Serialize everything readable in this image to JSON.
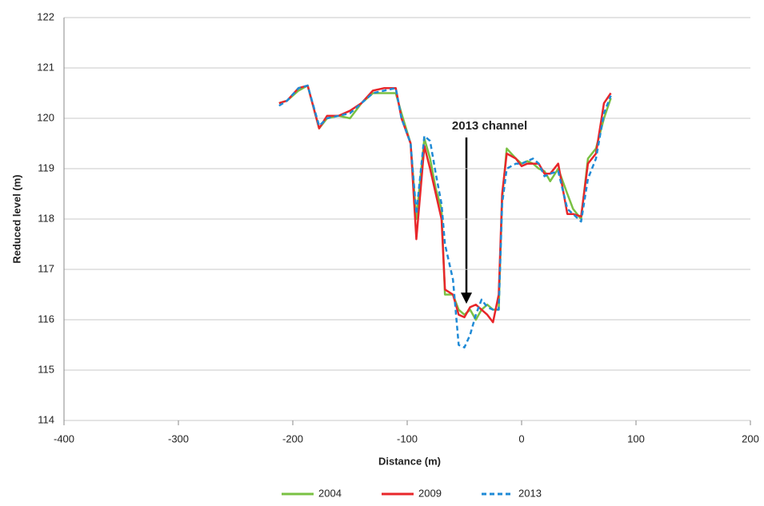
{
  "chart_data": {
    "type": "line",
    "annotation": "2013 channel",
    "xlabel": "Distance (m)",
    "ylabel": "Reduced level (m)",
    "xlim": [
      -400,
      200
    ],
    "xticks": [
      -400,
      -300,
      -200,
      -100,
      0,
      100,
      200
    ],
    "ylim": [
      114,
      122
    ],
    "yticks": [
      114,
      115,
      116,
      117,
      118,
      119,
      120,
      121,
      122
    ],
    "grid": true,
    "legend": "bottom",
    "x": [
      -212,
      -205,
      -195,
      -187,
      -177,
      -170,
      -160,
      -150,
      -140,
      -130,
      -120,
      -110,
      -105,
      -97,
      -92,
      -85,
      -80,
      -75,
      -70,
      -67,
      -60,
      -55,
      -50,
      -45,
      -40,
      -35,
      -30,
      -25,
      -20,
      -17,
      -13,
      -5,
      0,
      5,
      10,
      15,
      20,
      25,
      32,
      40,
      45,
      52,
      58,
      65,
      72,
      78
    ],
    "series": [
      {
        "name": "2004",
        "color": "#7ac143",
        "dashed": false,
        "values": [
          120.3,
          120.35,
          120.55,
          120.65,
          119.8,
          120.0,
          120.05,
          120.0,
          120.3,
          120.5,
          120.5,
          120.5,
          120.1,
          119.5,
          118.0,
          119.6,
          119.2,
          118.6,
          118.2,
          116.5,
          116.5,
          116.2,
          116.1,
          116.2,
          116.0,
          116.2,
          116.3,
          116.2,
          116.2,
          118.4,
          119.4,
          119.2,
          119.1,
          119.15,
          119.1,
          119.0,
          118.95,
          118.75,
          119.0,
          118.5,
          118.2,
          118.0,
          119.2,
          119.4,
          120.0,
          120.4
        ]
      },
      {
        "name": "2009",
        "color": "#e8262a",
        "dashed": false,
        "values": [
          120.3,
          120.35,
          120.6,
          120.65,
          119.8,
          120.05,
          120.05,
          120.15,
          120.3,
          120.55,
          120.6,
          120.6,
          120.0,
          119.5,
          117.6,
          119.45,
          119.0,
          118.5,
          118.0,
          116.6,
          116.5,
          116.1,
          116.05,
          116.25,
          116.3,
          116.2,
          116.1,
          115.95,
          116.5,
          118.5,
          119.3,
          119.2,
          119.05,
          119.1,
          119.1,
          119.1,
          118.9,
          118.9,
          119.1,
          118.1,
          118.1,
          118.05,
          119.1,
          119.3,
          120.3,
          120.5
        ]
      },
      {
        "name": "2013",
        "color": "#1f8ad6",
        "dashed": true,
        "values": [
          120.25,
          120.35,
          120.6,
          120.65,
          119.85,
          120.0,
          120.05,
          120.1,
          120.3,
          120.5,
          120.55,
          120.6,
          120.0,
          119.5,
          118.1,
          119.65,
          119.55,
          118.9,
          118.3,
          117.5,
          116.8,
          115.5,
          115.45,
          115.7,
          116.1,
          116.4,
          116.25,
          116.2,
          116.2,
          118.3,
          119.0,
          119.1,
          119.1,
          119.15,
          119.2,
          119.1,
          118.85,
          118.9,
          118.95,
          118.2,
          118.1,
          117.95,
          118.8,
          119.2,
          120.1,
          120.45
        ]
      }
    ]
  }
}
